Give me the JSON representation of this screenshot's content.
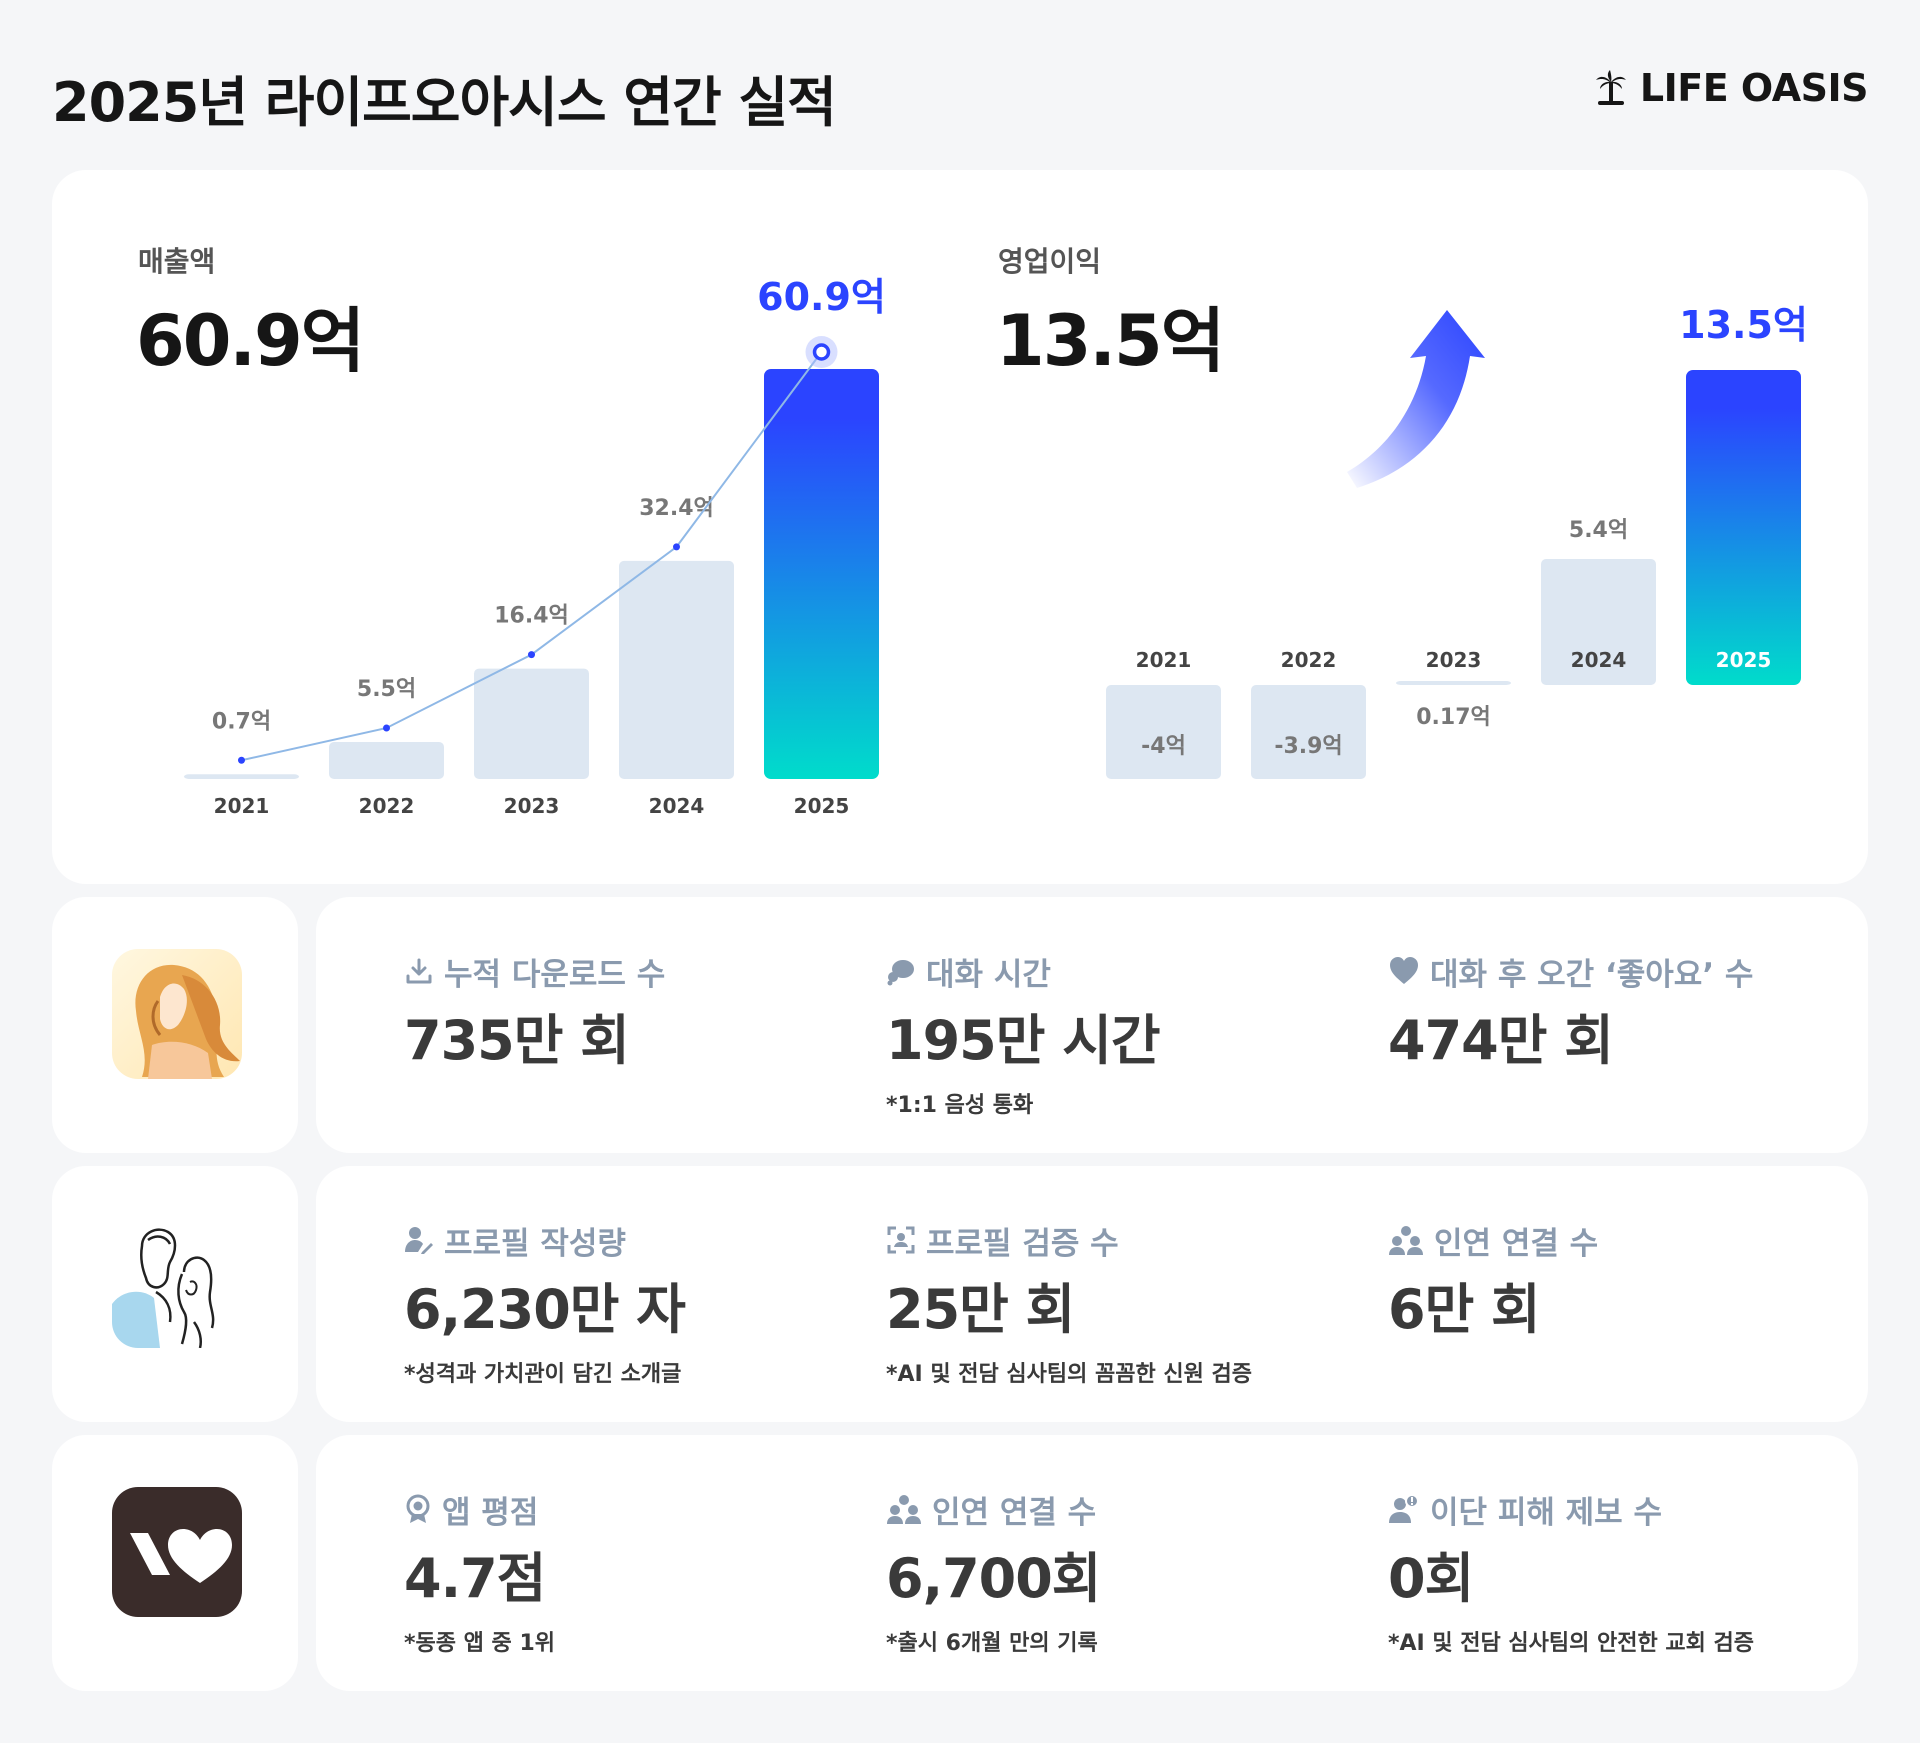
{
  "title": "2025년 라이프오아시스 연간 실적",
  "brand": "LIFE OASIS",
  "colors": {
    "accent": "#2b44ff",
    "accent_end": "#00dccb",
    "bar": "#dde7f2",
    "label_gray": "#8a9aae"
  },
  "chart_data": [
    {
      "type": "bar",
      "metric_label": "매출액",
      "headline": "60.9억",
      "categories": [
        "2021",
        "2022",
        "2023",
        "2024",
        "2025"
      ],
      "values": [
        0.7,
        5.5,
        16.4,
        32.4,
        60.9
      ],
      "value_labels": [
        "0.7억",
        "5.5억",
        "16.4억",
        "32.4억",
        "60.9억"
      ],
      "highlight_last": true,
      "trend_line": true,
      "ylim": [
        0,
        60.9
      ],
      "grid": false
    },
    {
      "type": "bar",
      "metric_label": "영업이익",
      "headline": "13.5억",
      "categories": [
        "2021",
        "2022",
        "2023",
        "2024",
        "2025"
      ],
      "values": [
        -4,
        -3.9,
        0.17,
        5.4,
        13.5
      ],
      "value_labels": [
        "-4억",
        "-3.9억",
        "0.17억",
        "5.4억",
        "13.5억"
      ],
      "highlight_last": true,
      "trend_arrow": true,
      "grid": false
    }
  ],
  "rows": [
    {
      "icon": "woman-illustration-icon",
      "stats": [
        {
          "icon": "download-icon",
          "label": "누적 다운로드 수",
          "value": "735만 회",
          "note": ""
        },
        {
          "icon": "chat-bubble-icon",
          "label": "대화 시간",
          "value": "195만 시간",
          "note": "*1:1 음성 통화"
        },
        {
          "icon": "heart-icon",
          "label": "대화 후 오간 ‘좋아요’ 수",
          "value": "474만 회",
          "note": ""
        }
      ]
    },
    {
      "icon": "couple-illustration-icon",
      "stats": [
        {
          "icon": "profile-edit-icon",
          "label": "프로필 작성량",
          "value": "6,230만 자",
          "note": "*성격과 가치관이 담긴 소개글"
        },
        {
          "icon": "face-scan-icon",
          "label": "프로필 검증 수",
          "value": "25만 회",
          "note": "*AI 및 전담 심사팀의 꼼꼼한 신원 검증"
        },
        {
          "icon": "people-icon",
          "label": "인연 연결 수",
          "value": "6만 회",
          "note": ""
        }
      ]
    },
    {
      "icon": "heart-logo-icon",
      "stats": [
        {
          "icon": "badge-icon",
          "label": "앱 평점",
          "value": "4.7점",
          "note": "*동종 앱 중 1위"
        },
        {
          "icon": "people-icon",
          "label": "인연 연결 수",
          "value": "6,700회",
          "note": "*출시 6개월 만의 기록"
        },
        {
          "icon": "alert-user-icon",
          "label": "이단 피해 제보 수",
          "value": "0회",
          "note": "*AI 및 전담 심사팀의 안전한 교회 검증"
        }
      ]
    }
  ]
}
